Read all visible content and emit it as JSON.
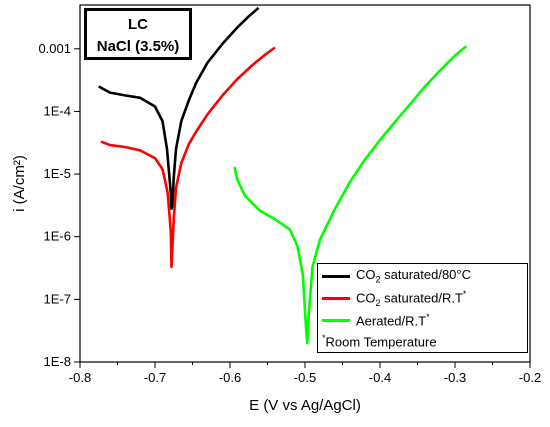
{
  "chart_data": {
    "type": "line",
    "xlabel": "E (V vs Ag/AgCl)",
    "ylabel": "i (A/cm²)",
    "xlim": [
      -0.8,
      -0.2
    ],
    "ylim": [
      1e-08,
      0.005
    ],
    "yscale": "log",
    "xticks": [
      -0.8,
      -0.7,
      -0.6,
      -0.5,
      -0.4,
      -0.3,
      -0.2
    ],
    "xtick_labels": [
      "-0.8",
      "-0.7",
      "-0.6",
      "-0.5",
      "-0.4",
      "-0.3",
      "-0.2"
    ],
    "yticks": [
      1e-08,
      1e-07,
      1e-06,
      1e-05,
      0.0001,
      0.001
    ],
    "ytick_labels": [
      "1E-8",
      "1E-7",
      "1E-6",
      "1E-5",
      "1E-4",
      "0.001"
    ],
    "grid": false,
    "legend_position": "bottom-right",
    "annotation": {
      "line1": "LC",
      "line2": "NaCl (3.5%)"
    },
    "series": [
      {
        "name_main": "CO",
        "name_sub": "2",
        "name_rest": " saturated/80°C",
        "color": "#000000",
        "x": [
          -0.775,
          -0.76,
          -0.74,
          -0.72,
          -0.7,
          -0.69,
          -0.684,
          -0.679,
          -0.678,
          -0.677,
          -0.675,
          -0.672,
          -0.665,
          -0.655,
          -0.645,
          -0.63,
          -0.61,
          -0.59,
          -0.575,
          -0.562
        ],
        "y": [
          0.00025,
          0.0002,
          0.00018,
          0.000165,
          0.00012,
          7e-05,
          2.5e-05,
          5e-06,
          2.8e-06,
          3e-06,
          9e-06,
          2.5e-05,
          7e-05,
          0.00015,
          0.00029,
          0.0006,
          0.0012,
          0.0022,
          0.0033,
          0.0045
        ]
      },
      {
        "name_main": "CO",
        "name_sub": "2",
        "name_rest": " saturated/R.T",
        "name_sup": "*",
        "color": "#ff0000",
        "x": [
          -0.772,
          -0.76,
          -0.74,
          -0.72,
          -0.7,
          -0.69,
          -0.683,
          -0.679,
          -0.678,
          -0.677,
          -0.675,
          -0.672,
          -0.665,
          -0.655,
          -0.645,
          -0.63,
          -0.61,
          -0.59,
          -0.57,
          -0.553,
          -0.54
        ],
        "y": [
          3.3e-05,
          2.9e-05,
          2.7e-05,
          2.4e-05,
          1.8e-05,
          1.2e-05,
          5e-06,
          1.2e-06,
          3.3e-07,
          6e-07,
          2e-06,
          6e-06,
          1.5e-05,
          3e-05,
          4.8e-05,
          9e-05,
          0.00018,
          0.00033,
          0.00055,
          0.00081,
          0.00105
        ]
      },
      {
        "name_main": "Aerated/R.T",
        "name_sup": "*",
        "color": "#00ff00",
        "x": [
          -0.594,
          -0.59,
          -0.58,
          -0.56,
          -0.54,
          -0.52,
          -0.51,
          -0.503,
          -0.499,
          -0.497,
          -0.495,
          -0.49,
          -0.48,
          -0.46,
          -0.44,
          -0.42,
          -0.4,
          -0.38,
          -0.36,
          -0.34,
          -0.32,
          -0.3,
          -0.285
        ],
        "y": [
          1.3e-05,
          8e-06,
          4.5e-06,
          2.6e-06,
          1.9e-06,
          1.3e-06,
          7e-07,
          2.5e-07,
          4e-08,
          2e-08,
          6e-08,
          3.3e-07,
          9e-07,
          2.8e-06,
          7.5e-06,
          1.7e-05,
          3.5e-05,
          6.8e-05,
          0.00013,
          0.00025,
          0.00045,
          0.00078,
          0.0011
        ]
      }
    ],
    "legend_note_sup": "*",
    "legend_note": "Room Temperature"
  }
}
